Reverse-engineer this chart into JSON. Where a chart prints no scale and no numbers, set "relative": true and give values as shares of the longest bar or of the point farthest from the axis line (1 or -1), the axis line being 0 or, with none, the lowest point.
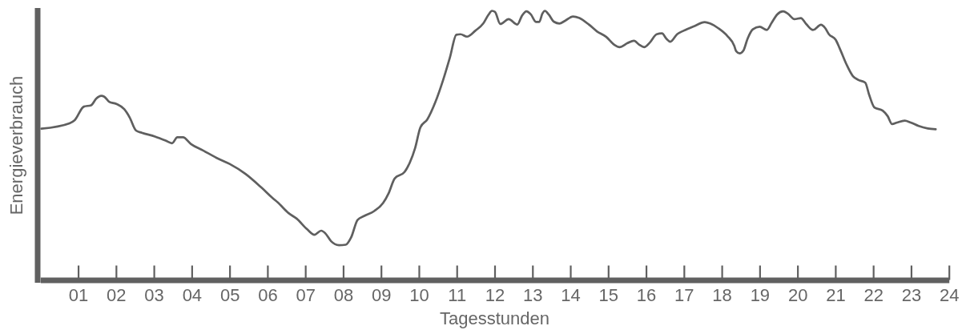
{
  "chart_data": {
    "type": "line",
    "xlabel": "Tagesstunden",
    "ylabel": "Energieverbrauch",
    "relative": true,
    "color": "#5f5f5f",
    "xlim": [
      0,
      24
    ],
    "xticks": [
      {
        "value": 1,
        "label": "01"
      },
      {
        "value": 2,
        "label": "02"
      },
      {
        "value": 3,
        "label": "03"
      },
      {
        "value": 4,
        "label": "04"
      },
      {
        "value": 5,
        "label": "05"
      },
      {
        "value": 6,
        "label": "06"
      },
      {
        "value": 7,
        "label": "07"
      },
      {
        "value": 8,
        "label": "08"
      },
      {
        "value": 9,
        "label": "09"
      },
      10,
      11,
      12,
      13,
      14,
      15,
      16,
      17,
      18,
      19,
      20,
      21,
      22,
      23,
      24
    ],
    "x": [
      0.03,
      0.77,
      0.91,
      1.15,
      1.34,
      1.48,
      1.61,
      1.69,
      1.82,
      2.01,
      2.22,
      2.36,
      2.53,
      2.68,
      3.03,
      3.31,
      3.48,
      3.62,
      3.77,
      3.98,
      4.3,
      4.65,
      5.0,
      5.42,
      5.85,
      6.13,
      6.28,
      6.56,
      6.77,
      7.05,
      7.24,
      7.42,
      7.53,
      7.68,
      7.89,
      8.07,
      8.21,
      8.38,
      8.56,
      8.82,
      9.06,
      9.2,
      9.36,
      9.62,
      9.76,
      9.9,
      10.04,
      10.22,
      10.43,
      10.64,
      10.82,
      10.99,
      11.1,
      11.27,
      11.49,
      11.7,
      11.84,
      11.93,
      12.01,
      12.15,
      12.37,
      12.6,
      12.72,
      12.84,
      12.96,
      13.09,
      13.18,
      13.26,
      13.33,
      13.43,
      13.57,
      13.71,
      13.86,
      14.07,
      14.24,
      14.49,
      14.7,
      14.95,
      15.16,
      15.3,
      15.51,
      15.68,
      15.82,
      15.95,
      16.1,
      16.28,
      16.42,
      16.54,
      16.64,
      16.82,
      16.99,
      17.27,
      17.55,
      17.69,
      17.9,
      18.15,
      18.33,
      18.38,
      18.47,
      18.57,
      18.68,
      18.82,
      19.0,
      19.19,
      19.32,
      19.46,
      19.62,
      19.74,
      19.92,
      20.09,
      20.23,
      20.41,
      20.62,
      20.73,
      20.83,
      21.01,
      21.11,
      21.29,
      21.46,
      21.61,
      21.79,
      21.89,
      22.03,
      22.25,
      22.38,
      22.5,
      22.63,
      22.83,
      22.99,
      23.2,
      23.44,
      23.65
    ],
    "values": [
      0.562,
      0.582,
      0.594,
      0.644,
      0.649,
      0.674,
      0.684,
      0.681,
      0.662,
      0.654,
      0.634,
      0.604,
      0.555,
      0.547,
      0.533,
      0.518,
      0.508,
      0.53,
      0.53,
      0.505,
      0.481,
      0.454,
      0.431,
      0.394,
      0.342,
      0.305,
      0.287,
      0.248,
      0.228,
      0.188,
      0.168,
      0.183,
      0.173,
      0.144,
      0.129,
      0.131,
      0.158,
      0.223,
      0.238,
      0.256,
      0.287,
      0.322,
      0.377,
      0.401,
      0.436,
      0.49,
      0.567,
      0.596,
      0.659,
      0.743,
      0.827,
      0.911,
      0.913,
      0.904,
      0.926,
      0.953,
      0.986,
      1.0,
      0.996,
      0.951,
      0.969,
      0.949,
      0.981,
      0.998,
      0.986,
      0.959,
      0.959,
      0.989,
      1.0,
      0.986,
      0.959,
      0.953,
      0.963,
      0.979,
      0.973,
      0.949,
      0.924,
      0.903,
      0.874,
      0.865,
      0.88,
      0.889,
      0.874,
      0.865,
      0.882,
      0.913,
      0.916,
      0.896,
      0.885,
      0.913,
      0.926,
      0.943,
      0.958,
      0.953,
      0.936,
      0.906,
      0.87,
      0.85,
      0.842,
      0.852,
      0.896,
      0.931,
      0.941,
      0.929,
      0.956,
      0.986,
      0.998,
      0.99,
      0.969,
      0.973,
      0.951,
      0.929,
      0.948,
      0.936,
      0.913,
      0.892,
      0.862,
      0.802,
      0.758,
      0.743,
      0.733,
      0.689,
      0.641,
      0.629,
      0.609,
      0.579,
      0.585,
      0.592,
      0.585,
      0.572,
      0.563,
      0.56
    ]
  }
}
